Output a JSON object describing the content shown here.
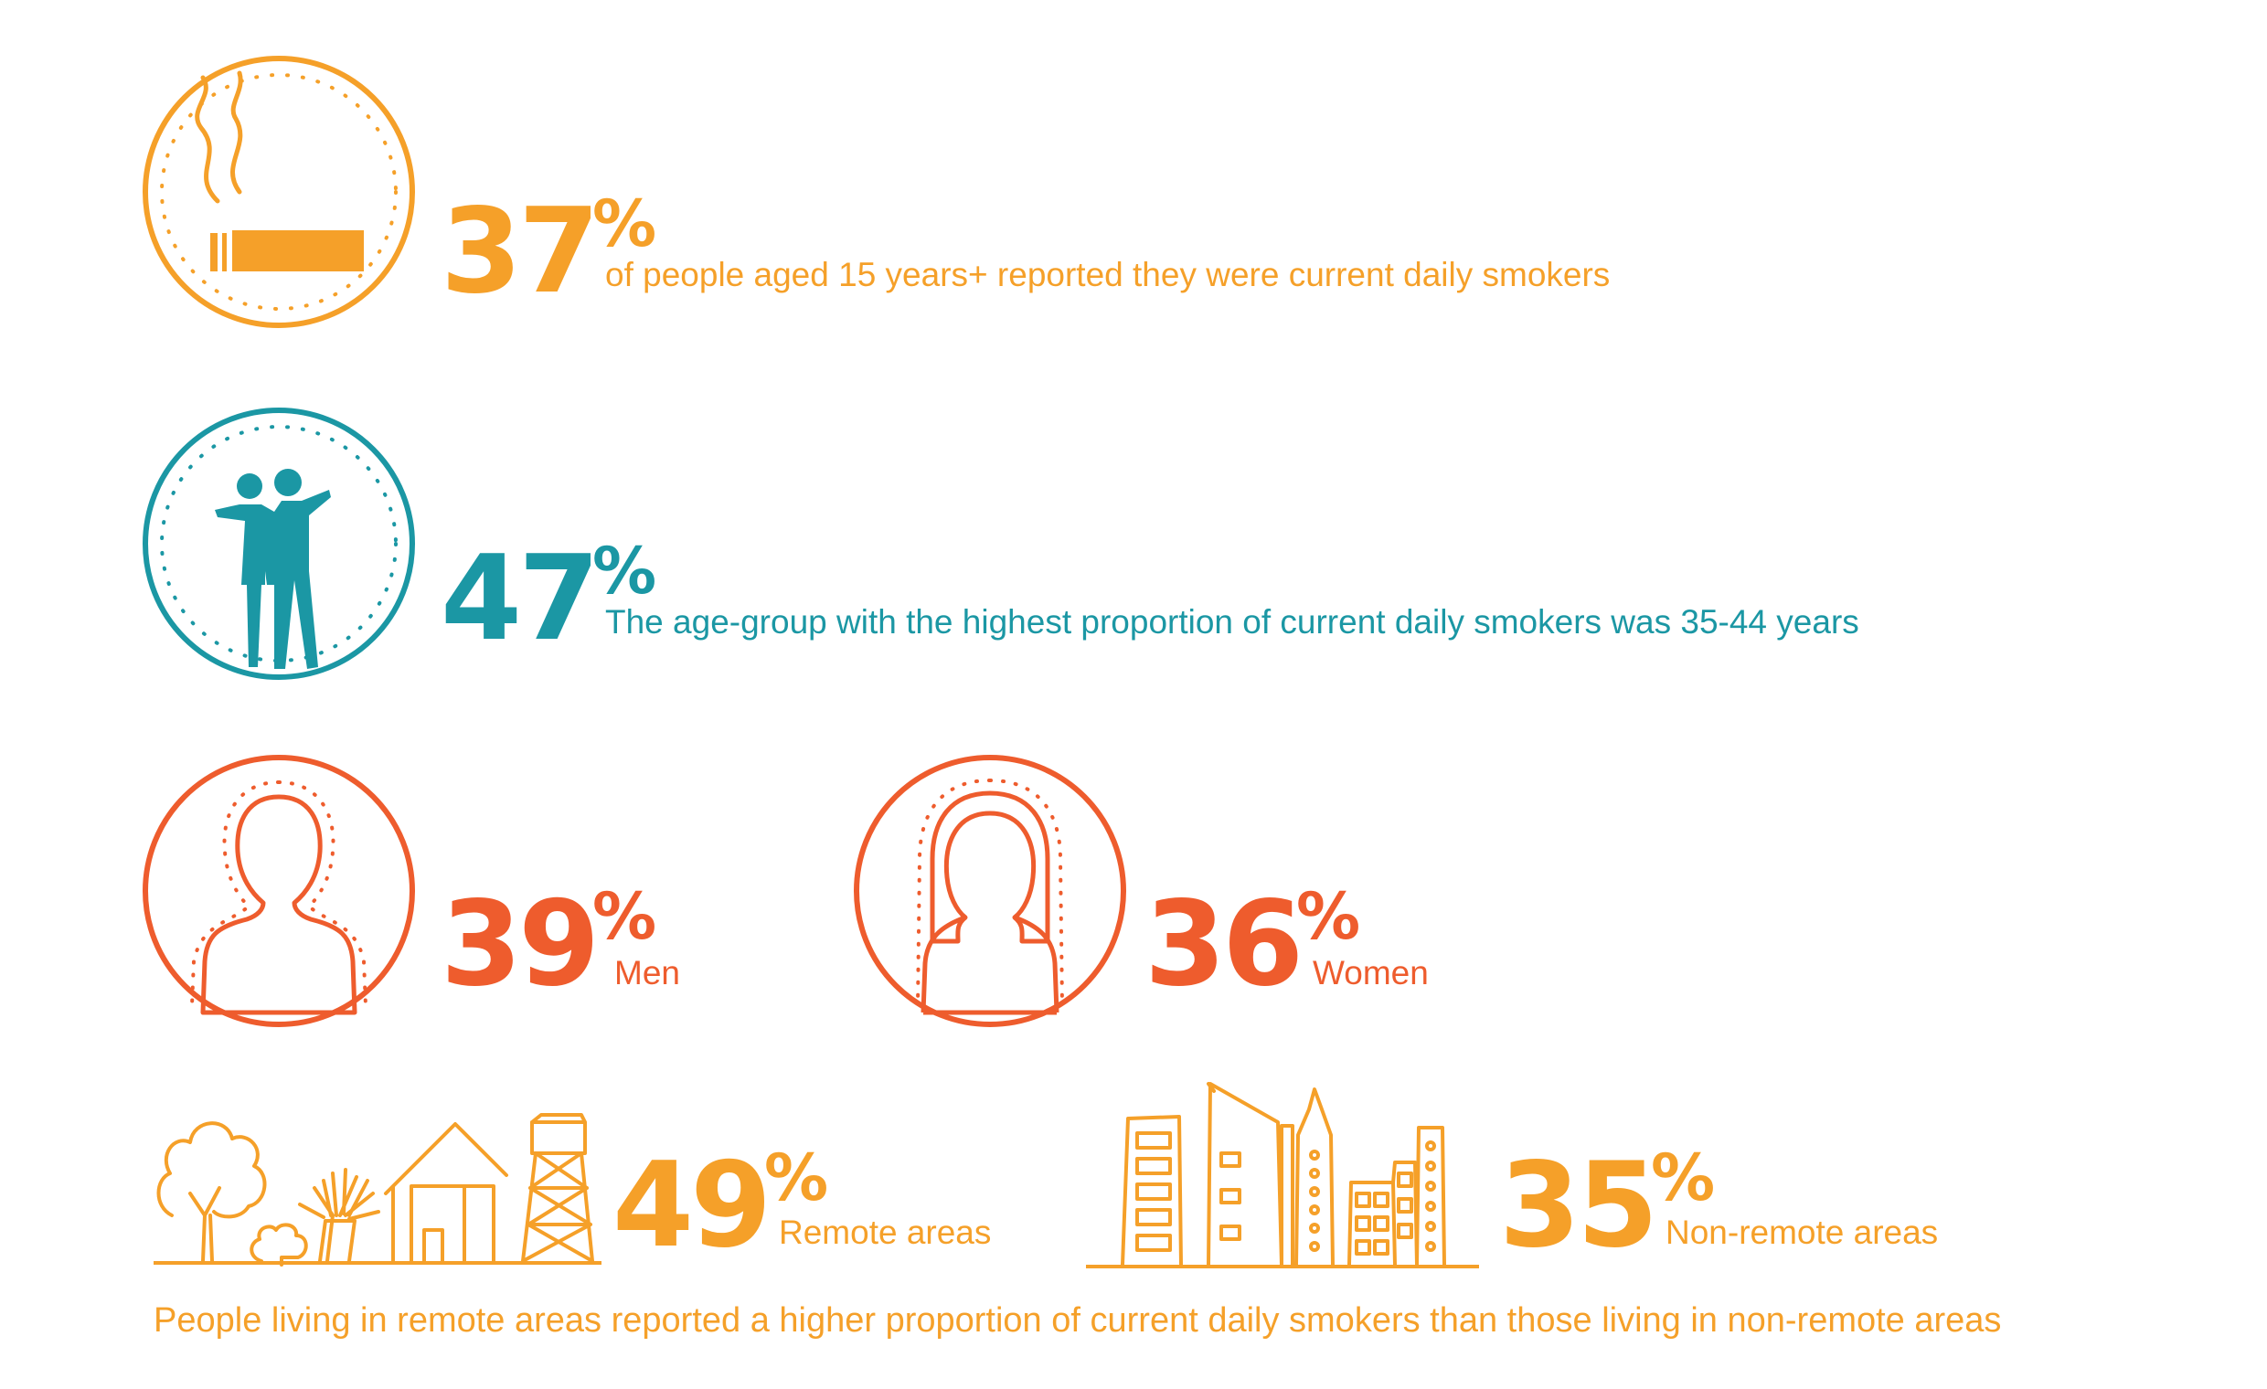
{
  "colors": {
    "orange": "#F5A029",
    "teal": "#1B97A4",
    "red": "#EE5C2D"
  },
  "stats": {
    "smokers": {
      "value": "37",
      "unit": "%",
      "label": "of people aged 15 years+ reported they were current daily smokers",
      "icon": "cigarette-icon"
    },
    "age_group": {
      "value": "47",
      "unit": "%",
      "label": "The age-group with the highest proportion of current daily smokers was 35-44 years",
      "icon": "two-people-icon"
    },
    "men": {
      "value": "39",
      "unit": "%",
      "label": "Men",
      "icon": "man-silhouette-icon"
    },
    "women": {
      "value": "36",
      "unit": "%",
      "label": "Women",
      "icon": "woman-silhouette-icon"
    },
    "remote": {
      "value": "49",
      "unit": "%",
      "label": "Remote areas",
      "icon": "remote-landscape-icon"
    },
    "non_remote": {
      "value": "35",
      "unit": "%",
      "label": "Non-remote areas",
      "icon": "city-skyline-icon"
    }
  },
  "footer": {
    "note": "People living in remote areas reported a higher proportion of current daily smokers than those living in non-remote areas"
  }
}
